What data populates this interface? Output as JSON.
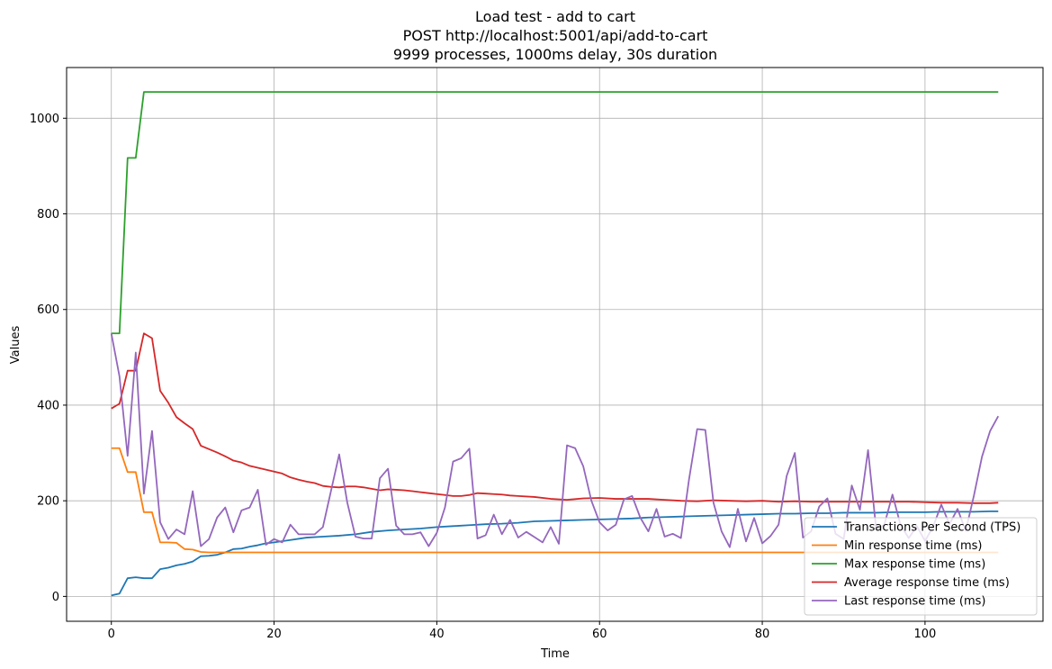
{
  "chart_data": {
    "type": "line",
    "title_lines": [
      "Load test - add to cart",
      "POST http://localhost:5001/api/add-to-cart",
      "9999 processes, 1000ms delay, 30s duration"
    ],
    "xlabel": "Time",
    "ylabel": "Values",
    "xlim": [
      -5.5,
      114.5
    ],
    "ylim": [
      -52,
      1106
    ],
    "xticks": [
      0,
      20,
      40,
      60,
      80,
      100
    ],
    "yticks": [
      0,
      200,
      400,
      600,
      800,
      1000
    ],
    "grid": true,
    "legend_position": "lower-right",
    "series": [
      {
        "name": "Transactions Per Second (TPS)",
        "color": "#1f77b4",
        "x": [
          0,
          1,
          2,
          3,
          4,
          5,
          6,
          7,
          8,
          9,
          10,
          11,
          12,
          13,
          14,
          15,
          16,
          17,
          18,
          19,
          20,
          22,
          24,
          26,
          28,
          30,
          32,
          34,
          36,
          38,
          40,
          42,
          44,
          46,
          48,
          50,
          52,
          54,
          56,
          58,
          60,
          62,
          64,
          66,
          68,
          70,
          72,
          74,
          76,
          78,
          80,
          82,
          84,
          86,
          88,
          90,
          92,
          94,
          96,
          98,
          100,
          102,
          104,
          106,
          108,
          109
        ],
        "y": [
          2,
          6,
          38,
          40,
          38,
          38,
          57,
          60,
          65,
          68,
          73,
          84,
          85,
          87,
          92,
          99,
          100,
          104,
          107,
          111,
          113,
          118,
          123,
          125,
          127,
          130,
          135,
          138,
          140,
          142,
          145,
          147,
          149,
          151,
          152,
          154,
          157,
          158,
          159,
          160,
          161,
          162,
          163,
          165,
          166,
          167,
          168,
          169,
          170,
          171,
          172,
          173,
          173,
          174,
          174,
          175,
          175,
          175,
          176,
          176,
          176,
          177,
          177,
          177,
          178,
          178
        ]
      },
      {
        "name": "Min response time (ms)",
        "color": "#ff7f0e",
        "x": [
          0,
          1,
          2,
          3,
          4,
          5,
          6,
          7,
          8,
          9,
          10,
          11,
          12,
          13,
          109
        ],
        "y": [
          310,
          310,
          260,
          260,
          176,
          176,
          113,
          113,
          112,
          99,
          98,
          93,
          92,
          92,
          92
        ]
      },
      {
        "name": "Max response time (ms)",
        "color": "#2ca02c",
        "x": [
          0,
          1,
          2,
          3,
          4,
          109
        ],
        "y": [
          550,
          550,
          917,
          917,
          1055,
          1055
        ]
      },
      {
        "name": "Average response time (ms)",
        "color": "#d62728",
        "x": [
          0,
          1,
          2,
          3,
          4,
          5,
          6,
          7,
          8,
          9,
          10,
          11,
          12,
          13,
          14,
          15,
          16,
          17,
          18,
          19,
          20,
          21,
          22,
          23,
          24,
          25,
          26,
          27,
          28,
          29,
          30,
          31,
          32,
          33,
          34,
          35,
          36,
          37,
          38,
          39,
          40,
          41,
          42,
          43,
          44,
          45,
          46,
          47,
          48,
          49,
          50,
          52,
          54,
          56,
          58,
          60,
          62,
          64,
          66,
          68,
          70,
          72,
          74,
          76,
          78,
          80,
          82,
          84,
          86,
          88,
          90,
          92,
          94,
          96,
          98,
          100,
          102,
          104,
          106,
          108,
          109
        ],
        "y": [
          393,
          403,
          472,
          472,
          550,
          540,
          430,
          405,
          375,
          362,
          350,
          315,
          308,
          301,
          293,
          284,
          280,
          273,
          269,
          265,
          261,
          257,
          249,
          244,
          240,
          237,
          231,
          229,
          228,
          230,
          230,
          228,
          225,
          222,
          224,
          223,
          222,
          220,
          218,
          216,
          214,
          212,
          210,
          210,
          212,
          216,
          215,
          214,
          213,
          211,
          210,
          208,
          204,
          202,
          205,
          206,
          204,
          204,
          204,
          202,
          200,
          199,
          201,
          200,
          199,
          200,
          198,
          199,
          198,
          198,
          198,
          198,
          198,
          198,
          198,
          197,
          196,
          196,
          195,
          195,
          196
        ]
      },
      {
        "name": "Last response time (ms)",
        "color": "#9467bd",
        "x": [
          0,
          1,
          2,
          3,
          4,
          5,
          6,
          7,
          8,
          9,
          10,
          11,
          12,
          13,
          14,
          15,
          16,
          17,
          18,
          19,
          20,
          21,
          22,
          23,
          24,
          25,
          26,
          27,
          28,
          29,
          30,
          31,
          32,
          33,
          34,
          35,
          36,
          37,
          38,
          39,
          40,
          41,
          42,
          43,
          44,
          45,
          46,
          47,
          48,
          49,
          50,
          51,
          52,
          53,
          54,
          55,
          56,
          57,
          58,
          59,
          60,
          61,
          62,
          63,
          64,
          65,
          66,
          67,
          68,
          69,
          70,
          71,
          72,
          73,
          74,
          75,
          76,
          77,
          78,
          79,
          80,
          81,
          82,
          83,
          84,
          85,
          86,
          87,
          88,
          89,
          90,
          91,
          92,
          93,
          94,
          95,
          96,
          97,
          98,
          99,
          100,
          101,
          102,
          103,
          104,
          105,
          106,
          107,
          108,
          109
        ],
        "y": [
          550,
          460,
          294,
          510,
          215,
          346,
          155,
          120,
          140,
          130,
          220,
          105,
          120,
          165,
          186,
          134,
          180,
          186,
          223,
          108,
          120,
          113,
          150,
          130,
          130,
          130,
          145,
          221,
          297,
          196,
          125,
          121,
          121,
          247,
          267,
          148,
          130,
          130,
          134,
          105,
          133,
          186,
          282,
          289,
          309,
          121,
          128,
          171,
          130,
          160,
          123,
          135,
          124,
          113,
          145,
          110,
          316,
          310,
          272,
          200,
          155,
          138,
          150,
          203,
          210,
          165,
          136,
          183,
          125,
          131,
          122,
          245,
          350,
          348,
          196,
          136,
          103,
          183,
          115,
          164,
          111,
          126,
          150,
          252,
          300,
          123,
          136,
          188,
          205,
          131,
          120,
          232,
          181,
          306,
          140,
          150,
          213,
          149,
          122,
          147,
          116,
          146,
          192,
          151,
          183,
          137,
          210,
          292,
          346,
          377
        ]
      }
    ]
  }
}
